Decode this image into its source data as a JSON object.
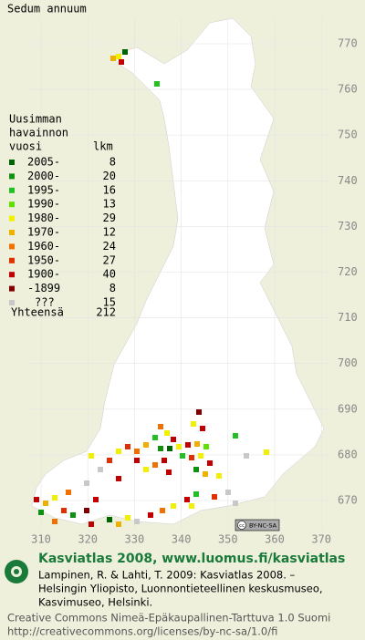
{
  "title": "Sedum annuum",
  "legend": {
    "heading_lines": [
      "Uusimman",
      "havainnon",
      "vuosi"
    ],
    "count_header": "lkm",
    "rows": [
      {
        "label": "2005-",
        "count": 8,
        "color": "#006400"
      },
      {
        "label": "2000-",
        "count": 20,
        "color": "#109010"
      },
      {
        "label": "1995-",
        "count": 16,
        "color": "#22c022"
      },
      {
        "label": "1990-",
        "count": 13,
        "color": "#60e000"
      },
      {
        "label": "1980-",
        "count": 29,
        "color": "#f0f000"
      },
      {
        "label": "1970-",
        "count": 12,
        "color": "#f0b000"
      },
      {
        "label": "1960-",
        "count": 24,
        "color": "#f07000"
      },
      {
        "label": "1950-",
        "count": 27,
        "color": "#e03000"
      },
      {
        "label": "1900-",
        "count": 40,
        "color": "#c00000"
      },
      {
        "label": "-1899",
        "count": 8,
        "color": "#800000"
      },
      {
        "label": "???",
        "count": 15,
        "color": "#c8c8c8"
      }
    ],
    "total_label": "Yhteensä",
    "total": 212
  },
  "map": {
    "y_ticks": [
      770,
      760,
      750,
      740,
      730,
      720,
      710,
      700,
      690,
      680,
      670
    ],
    "x_ticks": [
      310,
      320,
      330,
      340,
      350,
      360,
      370
    ]
  },
  "license_badge": {
    "cc": "cc",
    "text": "BY-NC-SA"
  },
  "footer": {
    "heading": "Kasviatlas 2008, www.luomus.fi/kasviatlas",
    "citation": [
      "Lampinen, R. & Lahti, T. 2009: Kasviatlas 2008. –",
      "Helsingin Yliopisto, Luonnontieteellinen keskusmuseo,",
      "Kasvimuseo, Helsinki."
    ],
    "license": [
      "Creative Commons Nimeä-Epäkaupallinen-Tarttuva 1.0 Suomi",
      "http://creativecommons.org/licenses/by-nc-sa/1.0/fi"
    ]
  }
}
